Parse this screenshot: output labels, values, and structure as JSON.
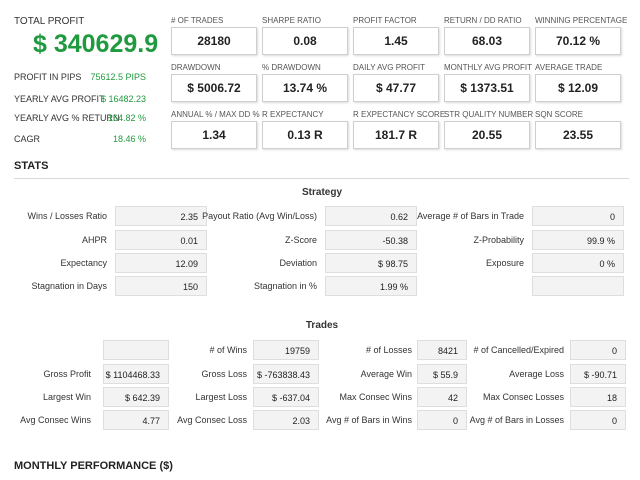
{
  "summary": {
    "total_profit_label": "TOTAL PROFIT",
    "total_profit_value": "$ 340629.9",
    "rows": [
      {
        "label": "PROFIT IN PIPS",
        "value": "75612.5 PIPS"
      },
      {
        "label": "YEARLY AVG PROFIT",
        "value": "$ 16482.23"
      },
      {
        "label": "YEARLY AVG % RETURN",
        "value": "164.82 %"
      },
      {
        "label": "CAGR",
        "value": "18.46 %"
      }
    ]
  },
  "cards": [
    {
      "label": "# OF TRADES",
      "value": "28180"
    },
    {
      "label": "SHARPE RATIO",
      "value": "0.08"
    },
    {
      "label": "PROFIT FACTOR",
      "value": "1.45"
    },
    {
      "label": "RETURN / DD RATIO",
      "value": "68.03"
    },
    {
      "label": "WINNING PERCENTAGE",
      "value": "70.12 %"
    },
    {
      "label": "DRAWDOWN",
      "value": "$ 5006.72"
    },
    {
      "label": "% DRAWDOWN",
      "value": "13.74 %"
    },
    {
      "label": "DAILY AVG PROFIT",
      "value": "$ 47.77"
    },
    {
      "label": "MONTHLY AVG PROFIT",
      "value": "$ 1373.51"
    },
    {
      "label": "AVERAGE TRADE",
      "value": "$ 12.09"
    },
    {
      "label": "ANNUAL % / MAX DD %",
      "value": "1.34"
    },
    {
      "label": "R EXPECTANCY",
      "value": "0.13 R"
    },
    {
      "label": "R EXPECTANCY SCORE",
      "value": "181.7 R"
    },
    {
      "label": "STR QUALITY NUMBER",
      "value": "20.55"
    },
    {
      "label": "SQN SCORE",
      "value": "23.55"
    }
  ],
  "stats": {
    "title": "STATS",
    "strategy": {
      "title": "Strategy",
      "rows": [
        [
          {
            "label": "Wins / Losses Ratio",
            "value": "2.35"
          },
          {
            "label": "Payout Ratio (Avg Win/Loss)",
            "value": "0.62"
          },
          {
            "label": "Average # of Bars in Trade",
            "value": "0"
          }
        ],
        [
          {
            "label": "AHPR",
            "value": "0.01"
          },
          {
            "label": "Z-Score",
            "value": "-50.38"
          },
          {
            "label": "Z-Probability",
            "value": "99.9 %"
          }
        ],
        [
          {
            "label": "Expectancy",
            "value": "12.09"
          },
          {
            "label": "Deviation",
            "value": "$ 98.75"
          },
          {
            "label": "Exposure",
            "value": "0 %"
          }
        ],
        [
          {
            "label": "Stagnation in Days",
            "value": "150"
          },
          {
            "label": "Stagnation in %",
            "value": "1.99 %"
          },
          {
            "label": "",
            "value": ""
          }
        ]
      ]
    },
    "trades": {
      "title": "Trades",
      "rows": [
        [
          {
            "label": "",
            "value": ""
          },
          {
            "label": "# of Wins",
            "value": "19759"
          },
          {
            "label": "# of Losses",
            "value": "8421"
          },
          {
            "label": "# of Cancelled/Expired",
            "value": "0"
          }
        ],
        [
          {
            "label": "Gross Profit",
            "value": "$ 1104468.33"
          },
          {
            "label": "Gross Loss",
            "value": "$ -763838.43"
          },
          {
            "label": "Average Win",
            "value": "$ 55.9"
          },
          {
            "label": "Average Loss",
            "value": "$ -90.71"
          }
        ],
        [
          {
            "label": "Largest Win",
            "value": "$ 642.39"
          },
          {
            "label": "Largest Loss",
            "value": "$ -637.04"
          },
          {
            "label": "Max Consec Wins",
            "value": "42"
          },
          {
            "label": "Max Consec Losses",
            "value": "18"
          }
        ],
        [
          {
            "label": "Avg Consec Wins",
            "value": "4.77"
          },
          {
            "label": "Avg Consec Loss",
            "value": "2.03"
          },
          {
            "label": "Avg # of Bars in Wins",
            "value": "0"
          },
          {
            "label": "Avg # of Bars in Losses",
            "value": "0"
          }
        ]
      ]
    }
  },
  "monthly": {
    "title": "MONTHLY PERFORMANCE ($)"
  }
}
